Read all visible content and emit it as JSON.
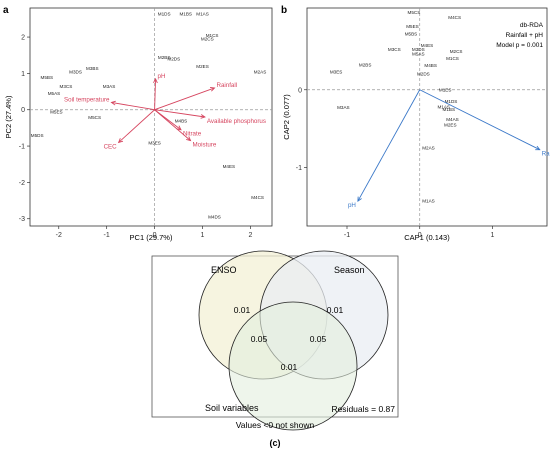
{
  "panel_a": {
    "letter": "a",
    "xlabel": "PC1 (29.7%)",
    "ylabel": "PC2 (27.4%)",
    "xticks": [
      -2,
      -1,
      0,
      1,
      2
    ],
    "yticks": [
      2,
      1,
      0,
      -1,
      -2,
      -3
    ],
    "arrow_color": "#d6455f",
    "vectors": [
      {
        "label": "pH",
        "x": 0.02,
        "y": 0.85
      },
      {
        "label": "Rainfall",
        "x": 1.25,
        "y": 0.6
      },
      {
        "label": "Soil temperature",
        "x": -0.9,
        "y": 0.2
      },
      {
        "label": "Available phosphorus",
        "x": 1.05,
        "y": -0.2
      },
      {
        "label": "CEC",
        "x": -0.75,
        "y": -0.9
      },
      {
        "label": "Nitrate",
        "x": 0.55,
        "y": -0.55
      },
      {
        "label": "Moisture",
        "x": 0.75,
        "y": -0.85
      }
    ],
    "sites": [
      {
        "label": "M1DS",
        "x": 0.2,
        "y": 2.6
      },
      {
        "label": "M1BS",
        "x": 0.65,
        "y": 2.6
      },
      {
        "label": "M1AS",
        "x": 1.0,
        "y": 2.6
      },
      {
        "label": "M1CS",
        "x": 1.2,
        "y": 2.0
      },
      {
        "label": "M2CS",
        "x": 1.1,
        "y": 1.9
      },
      {
        "label": "M2BS",
        "x": 0.2,
        "y": 1.4
      },
      {
        "label": "M2DS",
        "x": 0.4,
        "y": 1.35
      },
      {
        "label": "M2ES",
        "x": 1.0,
        "y": 1.15
      },
      {
        "label": "M2AS",
        "x": 2.2,
        "y": 1.0
      },
      {
        "label": "M3BS",
        "x": -1.3,
        "y": 1.1
      },
      {
        "label": "M3DS",
        "x": -1.65,
        "y": 1.0
      },
      {
        "label": "M5BS",
        "x": -2.25,
        "y": 0.85
      },
      {
        "label": "M3CS",
        "x": -1.85,
        "y": 0.6
      },
      {
        "label": "M3AS",
        "x": -0.95,
        "y": 0.6
      },
      {
        "label": "M5AS",
        "x": -2.1,
        "y": 0.4
      },
      {
        "label": "M5ES",
        "x": -2.05,
        "y": -0.1
      },
      {
        "label": "M5CS",
        "x": -1.25,
        "y": -0.25
      },
      {
        "label": "M5DS",
        "x": -2.45,
        "y": -0.75
      },
      {
        "label": "M4BS",
        "x": 0.55,
        "y": -0.35
      },
      {
        "label": "M3ES",
        "x": 0.0,
        "y": -0.95
      },
      {
        "label": "M4ES",
        "x": 1.55,
        "y": -1.6
      },
      {
        "label": "M4CS",
        "x": 2.15,
        "y": -2.45
      },
      {
        "label": "M4DS",
        "x": 1.25,
        "y": -3.0
      }
    ]
  },
  "panel_b": {
    "letter": "b",
    "xlabel": "CAP1 (0.143)",
    "ylabel": "CAP2 (0.077)",
    "xticks": [
      -1,
      0,
      1
    ],
    "yticks": [
      0,
      -1
    ],
    "legend_lines": [
      "db-RDA",
      "Rainfall + pH",
      "Model p = 0.001"
    ],
    "arrow_color": "#3a78c8",
    "vectors": [
      {
        "label": "Rainfall",
        "x": 1.65,
        "y": -0.77
      },
      {
        "label": "pH",
        "x": -0.85,
        "y": -1.43
      }
    ],
    "sites": [
      {
        "label": "M5CS",
        "x": -0.08,
        "y": 0.97
      },
      {
        "label": "M4CS",
        "x": 0.48,
        "y": 0.91
      },
      {
        "label": "M5ES",
        "x": -0.1,
        "y": 0.79
      },
      {
        "label": "M5BS",
        "x": -0.12,
        "y": 0.7
      },
      {
        "label": "M4ES",
        "x": 0.1,
        "y": 0.55
      },
      {
        "label": "M3CS",
        "x": -0.35,
        "y": 0.5
      },
      {
        "label": "M3DS",
        "x": -0.02,
        "y": 0.5
      },
      {
        "label": "M5AS",
        "x": -0.02,
        "y": 0.44
      },
      {
        "label": "M2CS",
        "x": 0.5,
        "y": 0.47
      },
      {
        "label": "M1CS",
        "x": 0.45,
        "y": 0.38
      },
      {
        "label": "M4BS",
        "x": 0.15,
        "y": 0.29
      },
      {
        "label": "M2DS",
        "x": 0.05,
        "y": 0.18
      },
      {
        "label": "M2BS",
        "x": -0.75,
        "y": 0.3
      },
      {
        "label": "M3ES",
        "x": -1.15,
        "y": 0.21
      },
      {
        "label": "M3AS",
        "x": -1.05,
        "y": -0.25
      },
      {
        "label": "M1ES",
        "x": 0.35,
        "y": -0.02
      },
      {
        "label": "M1DS",
        "x": 0.43,
        "y": -0.17
      },
      {
        "label": "M1AS",
        "x": 0.33,
        "y": -0.24
      },
      {
        "label": "M1BS",
        "x": 0.4,
        "y": -0.27
      },
      {
        "label": "M4AS",
        "x": 0.45,
        "y": -0.4
      },
      {
        "label": "M2ES",
        "x": 0.42,
        "y": -0.47
      },
      {
        "label": "M2AS",
        "x": 0.12,
        "y": -0.77
      },
      {
        "label": "M1AS",
        "x": 0.12,
        "y": -1.45
      }
    ]
  },
  "panel_c": {
    "sets": [
      {
        "label": "ENSO",
        "fill": "#f3f0d6"
      },
      {
        "label": "Season",
        "fill": "#e9edf3"
      },
      {
        "label": "Soil variables",
        "fill": "#e3eedd"
      }
    ],
    "values": [
      {
        "region": "enso_only",
        "text": "0.01"
      },
      {
        "region": "season_only",
        "text": "0.01"
      },
      {
        "region": "enso_soil",
        "text": "0.05"
      },
      {
        "region": "season_soil",
        "text": "0.05"
      },
      {
        "region": "soil_only",
        "text": "0.01"
      }
    ],
    "residuals": "Residuals = 0.87",
    "note": "Values <0 not shown",
    "caption": "(c)"
  }
}
